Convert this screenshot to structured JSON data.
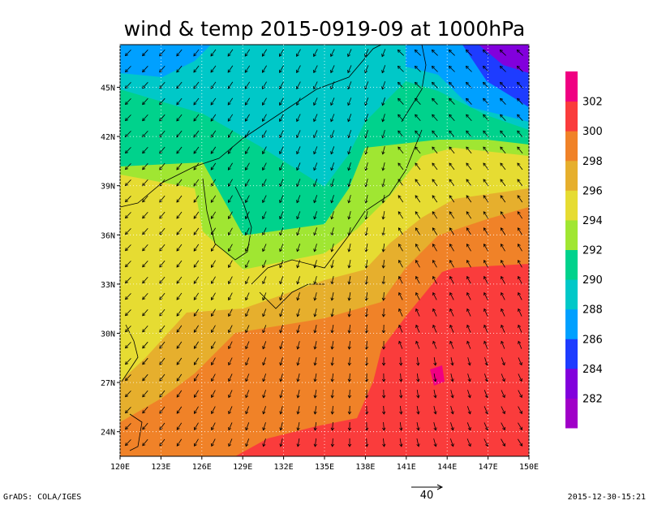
{
  "title": "wind & temp 2015-0919-09 at 1000hPa",
  "map": {
    "lonlim": [
      120,
      150
    ],
    "latlim": [
      22.5,
      47.6
    ],
    "lon_ticks": [
      {
        "value": 120,
        "label": "120E"
      },
      {
        "value": 123,
        "label": "123E"
      },
      {
        "value": 126,
        "label": "126E"
      },
      {
        "value": 129,
        "label": "129E"
      },
      {
        "value": 132,
        "label": "132E"
      },
      {
        "value": 135,
        "label": "135E"
      },
      {
        "value": 138,
        "label": "138E"
      },
      {
        "value": 141,
        "label": "141E"
      },
      {
        "value": 144,
        "label": "144E"
      },
      {
        "value": 147,
        "label": "147E"
      },
      {
        "value": 150,
        "label": "150E"
      }
    ],
    "lat_ticks": [
      {
        "value": 24,
        "label": "24N"
      },
      {
        "value": 27,
        "label": "27N"
      },
      {
        "value": 30,
        "label": "30N"
      },
      {
        "value": 33,
        "label": "33N"
      },
      {
        "value": 36,
        "label": "36N"
      },
      {
        "value": 39,
        "label": "39N"
      },
      {
        "value": 42,
        "label": "42N"
      },
      {
        "value": 45,
        "label": "45N"
      }
    ]
  },
  "colorbar": {
    "levels": [
      282,
      284,
      286,
      288,
      290,
      292,
      294,
      296,
      298,
      300,
      302
    ],
    "colors": [
      "#a000c8",
      "#8200dc",
      "#1e3cff",
      "#00a0ff",
      "#00c8c8",
      "#00d28c",
      "#a0e632",
      "#e6dc32",
      "#e6af2d",
      "#f08228",
      "#fa3c3c",
      "#f00082"
    ]
  },
  "reference_vector": {
    "label": "40"
  },
  "footer": {
    "left": "GrADS: COLA/IGES",
    "right": "2015-12-30-15:21"
  }
}
